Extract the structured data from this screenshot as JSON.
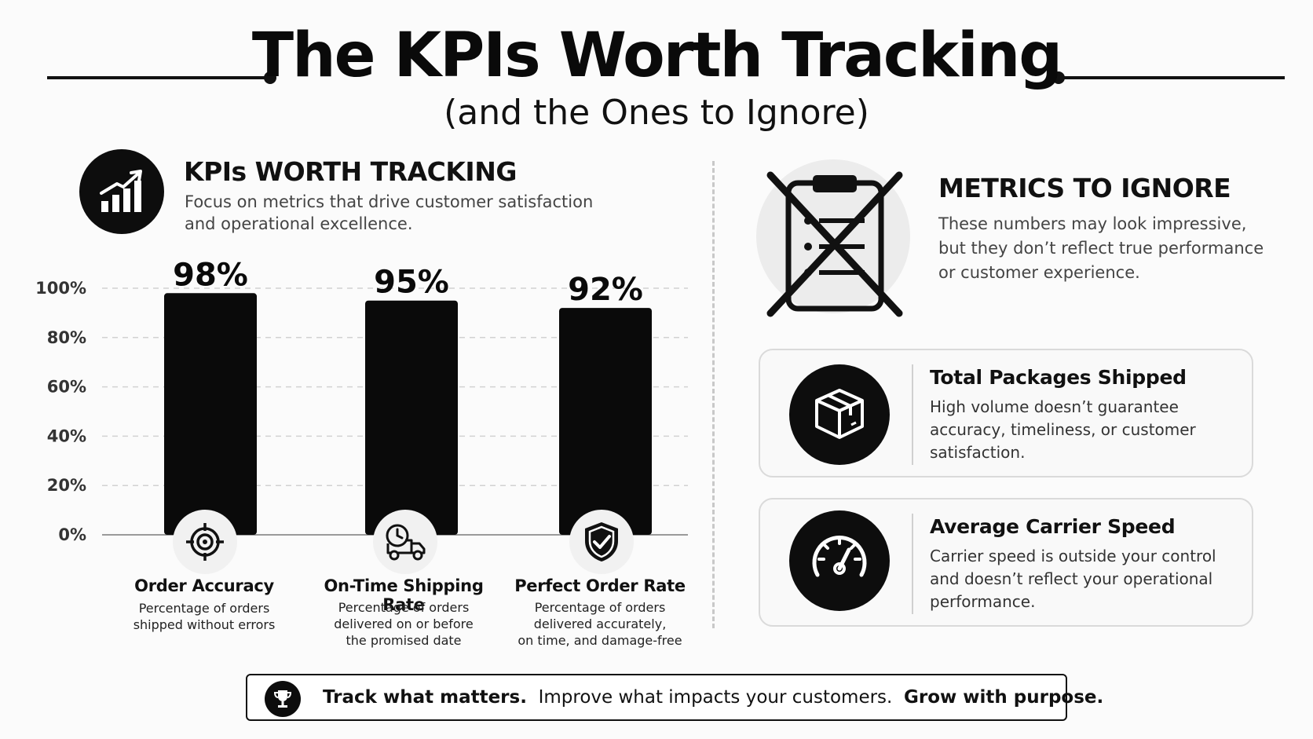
{
  "header": {
    "title": "The KPIs Worth Tracking",
    "subtitle": "(and the Ones to Ignore)"
  },
  "left": {
    "icon": "chart-growth-icon",
    "title": "KPIs WORTH TRACKING",
    "desc_line1": "Focus on metrics that drive customer satisfaction",
    "desc_line2": "and operational excellence."
  },
  "kpis": [
    {
      "name": "Order Accuracy",
      "icon": "target-icon",
      "desc": [
        "Percentage of orders",
        "shipped without errors"
      ]
    },
    {
      "name": "On-Time Shipping Rate",
      "icon": "delivery-truck-clock-icon",
      "desc": [
        "Percentage of orders",
        "delivered on or before",
        "the promised date"
      ]
    },
    {
      "name": "Perfect Order Rate",
      "icon": "shield-check-icon",
      "desc": [
        "Percentage of orders",
        "delivered accurately,",
        "on time, and damage-free"
      ]
    }
  ],
  "chart_data": {
    "type": "bar",
    "categories": [
      "Order Accuracy",
      "On-Time Shipping Rate",
      "Perfect Order Rate"
    ],
    "values": [
      98,
      95,
      92
    ],
    "value_labels": [
      "98%",
      "95%",
      "92%"
    ],
    "ylim": [
      0,
      100
    ],
    "yticks": [
      0,
      20,
      40,
      60,
      80,
      100
    ],
    "ytick_labels": [
      "0%",
      "20%",
      "40%",
      "60%",
      "80%",
      "100%"
    ],
    "grid": true,
    "bar_color": "#0a0a0a"
  },
  "right": {
    "icon": "crossed-out-clipboard-icon",
    "title": "METRICS TO IGNORE",
    "desc_line1": "These numbers may look impressive,",
    "desc_line2": "but they don’t reflect true performance",
    "desc_line3": "or customer experience.",
    "cards": [
      {
        "icon": "package-box-icon",
        "title": "Total Packages Shipped",
        "desc": [
          "High volume doesn’t guarantee",
          "accuracy, timeliness, or customer",
          "satisfaction."
        ]
      },
      {
        "icon": "speedometer-icon",
        "title": "Average Carrier Speed",
        "desc": [
          "Carrier speed is outside your control",
          "and doesn’t reflect your operational",
          "performance."
        ]
      }
    ]
  },
  "footer": {
    "icon": "trophy-icon",
    "part1": "Track what matters.",
    "part2": "Improve what impacts your customers.",
    "part3": "Grow with purpose."
  }
}
